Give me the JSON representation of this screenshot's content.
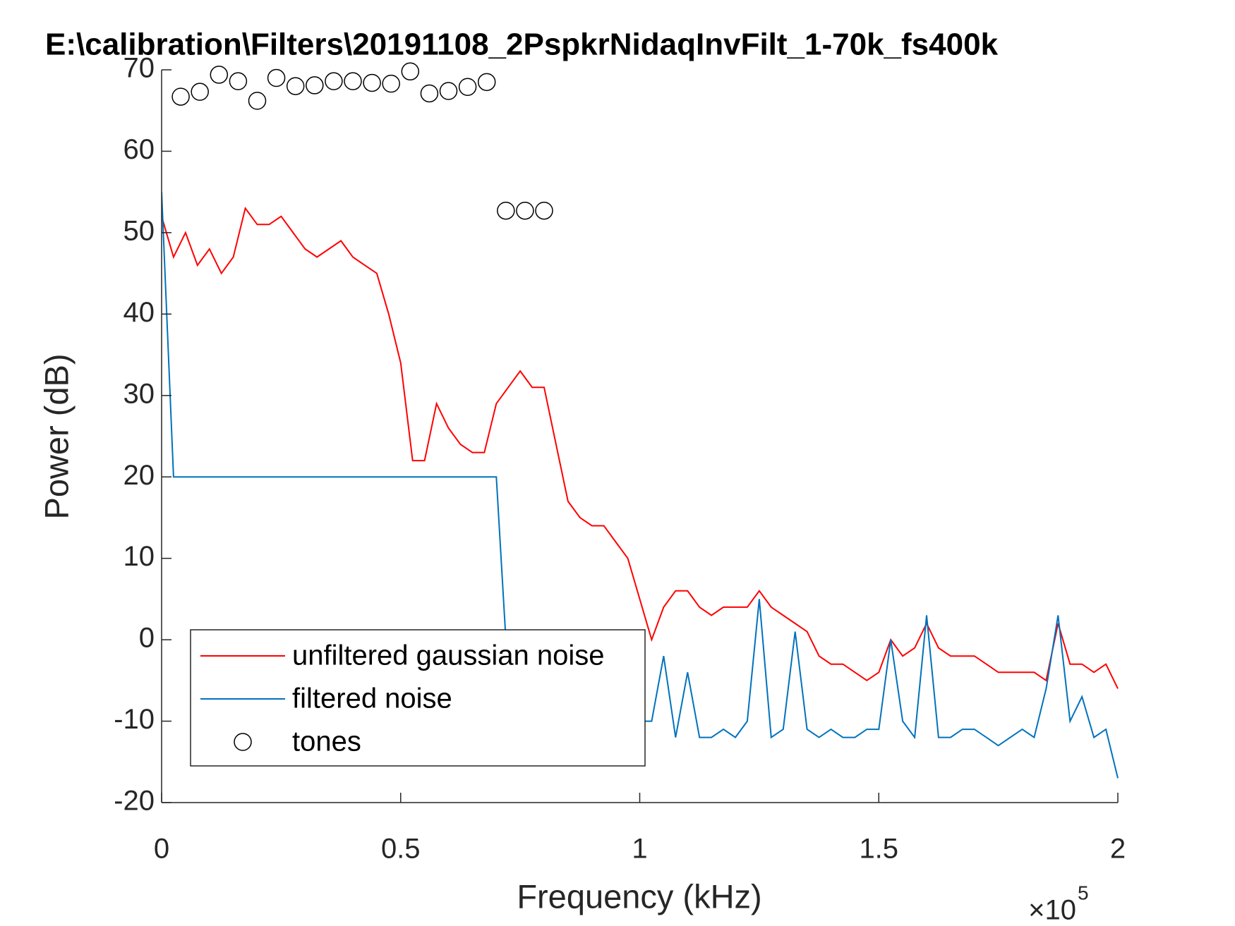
{
  "chart_data": {
    "type": "line",
    "title": "E:\\calibration\\Filters\\20191108_2PspkrNidaqInvFilt_1-70k_fs400k",
    "x_label": "Frequency (kHz)",
    "y_label": "Power (dB)",
    "x_multiplier": "×10",
    "x_multiplier_exponent": "5",
    "xlim": [
      0,
      2
    ],
    "xticks": [
      0,
      0.5,
      1,
      1.5,
      2
    ],
    "ylim": [
      -20,
      70
    ],
    "yticks": [
      -20,
      -10,
      0,
      10,
      20,
      30,
      40,
      50,
      60,
      70
    ],
    "legend": "lower-left",
    "x": [
      0,
      0.025,
      0.05,
      0.075,
      0.1,
      0.125,
      0.15,
      0.175,
      0.2,
      0.225,
      0.25,
      0.275,
      0.3,
      0.325,
      0.35,
      0.375,
      0.4,
      0.425,
      0.45,
      0.475,
      0.5,
      0.525,
      0.55,
      0.575,
      0.6,
      0.625,
      0.65,
      0.675,
      0.7,
      0.725,
      0.75,
      0.775,
      0.8,
      0.825,
      0.85,
      0.875,
      0.9,
      0.925,
      0.95,
      0.975,
      1,
      1.025,
      1.05,
      1.075,
      1.1,
      1.125,
      1.15,
      1.175,
      1.2,
      1.225,
      1.25,
      1.275,
      1.3,
      1.325,
      1.35,
      1.375,
      1.4,
      1.425,
      1.45,
      1.475,
      1.5,
      1.525,
      1.55,
      1.575,
      1.6,
      1.625,
      1.65,
      1.675,
      1.7,
      1.725,
      1.75,
      1.775,
      1.8,
      1.825,
      1.85,
      1.875,
      1.9,
      1.925,
      1.95,
      1.975,
      2
    ],
    "series": [
      {
        "name": "unfiltered gaussian noise",
        "type": "line",
        "color": "#ff0000",
        "values": [
          52,
          47,
          50,
          46,
          48,
          45,
          47,
          53,
          51,
          51,
          52,
          50,
          48,
          47,
          48,
          49,
          47,
          46,
          45,
          40,
          34,
          22,
          22,
          29,
          26,
          24,
          23,
          23,
          29,
          31,
          33,
          31,
          31,
          24,
          17,
          15,
          14,
          14,
          12,
          10,
          5,
          0,
          4,
          6,
          6,
          4,
          3,
          4,
          4,
          4,
          6,
          4,
          3,
          2,
          1,
          -2,
          -3,
          -3,
          -4,
          -5,
          -4,
          0,
          -2,
          -1,
          2,
          -1,
          -2,
          -2,
          -2,
          -3,
          -4,
          -4,
          -4,
          -4,
          -5,
          2,
          -3,
          -3,
          -4,
          -3,
          -6
        ]
      },
      {
        "name": "filtered noise",
        "type": "line",
        "color": "#0072bd",
        "values": [
          55,
          20,
          20,
          20,
          20,
          20,
          20,
          20,
          20,
          20,
          20,
          20,
          20,
          20,
          20,
          20,
          20,
          20,
          20,
          20,
          20,
          20,
          20,
          20,
          20,
          20,
          20,
          20,
          20,
          -5,
          -10,
          -10,
          -10,
          -10,
          -10,
          -10,
          -10,
          -10,
          -10,
          -10,
          -10,
          -10,
          -2,
          -12,
          -4,
          -12,
          -12,
          -11,
          -12,
          -10,
          5,
          -12,
          -11,
          1,
          -11,
          -12,
          -11,
          -12,
          -12,
          -11,
          -11,
          0,
          -10,
          -12,
          3,
          -12,
          -12,
          -11,
          -11,
          -12,
          -13,
          -12,
          -11,
          -12,
          -6,
          3,
          -10,
          -7,
          -12,
          -11,
          -17
        ]
      },
      {
        "name": "tones",
        "type": "scatter",
        "color": "#000000",
        "x": [
          0.04,
          0.08,
          0.12,
          0.16,
          0.2,
          0.24,
          0.28,
          0.32,
          0.36,
          0.4,
          0.44,
          0.48,
          0.52,
          0.56,
          0.6,
          0.64,
          0.68,
          0.72,
          0.76,
          0.8
        ],
        "values": [
          66.7,
          67.3,
          69.4,
          68.6,
          66.2,
          69.0,
          68.0,
          68.1,
          68.6,
          68.6,
          68.4,
          68.3,
          69.8,
          67.1,
          67.4,
          67.9,
          68.5,
          52.7,
          52.7,
          52.7
        ]
      }
    ]
  }
}
